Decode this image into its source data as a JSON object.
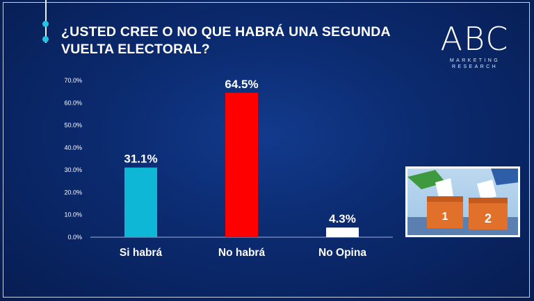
{
  "title": "¿USTED CREE O NO QUE HABRÁ UNA SEGUNDA VUELTA ELECTORAL?",
  "logo": {
    "text": "ABC",
    "line1": "MARKETING",
    "line2": "RESEARCH"
  },
  "illustration": {
    "box1": "1",
    "box2": "2",
    "icon": "ballot-box-illustration-icon"
  },
  "colors": {
    "background": "#0b2a6e",
    "bar1": "#0fb7d6",
    "bar2": "#ff0000",
    "bar3": "#ffffff"
  },
  "chart_data": {
    "type": "bar",
    "title": "",
    "xlabel": "",
    "ylabel": "",
    "categories": [
      "Si habrá",
      "No habrá",
      "No Opina"
    ],
    "values": [
      31.1,
      64.5,
      4.3
    ],
    "data_labels": [
      "31.1%",
      "64.5%",
      "4.3%"
    ],
    "bar_colors": [
      "#0fb7d6",
      "#ff0000",
      "#ffffff"
    ],
    "ylim": [
      0,
      70
    ],
    "yticks": [
      0,
      10,
      20,
      30,
      40,
      50,
      60,
      70
    ],
    "ytick_labels": [
      "0.0%",
      "10.0%",
      "20.0%",
      "30.0%",
      "40.0%",
      "50.0%",
      "60.0%",
      "70.0%"
    ],
    "grid": false,
    "legend": "none"
  }
}
